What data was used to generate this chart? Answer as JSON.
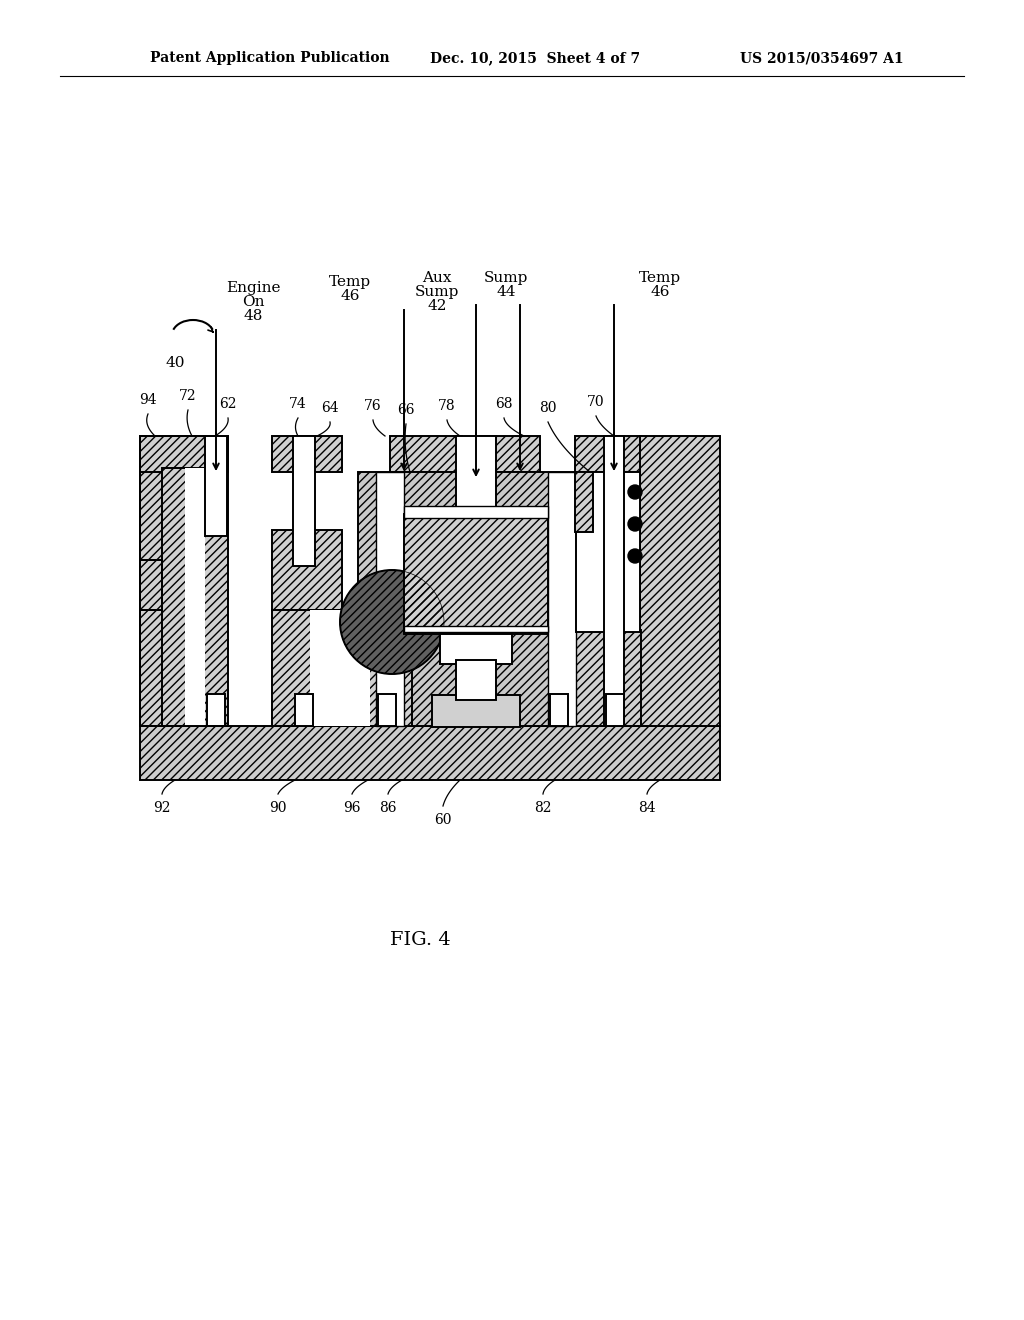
{
  "header_left": "Patent Application Publication",
  "header_center": "Dec. 10, 2015  Sheet 4 of 7",
  "header_right": "US 2015/0354697 A1",
  "fig_label": "FIG. 4",
  "bg_color": "#ffffff"
}
